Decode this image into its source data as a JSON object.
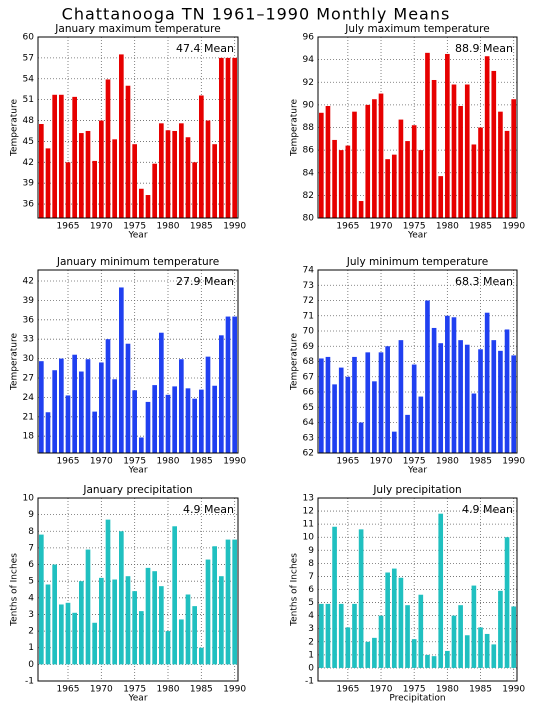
{
  "title": "Chattanooga TN  1961–1990 Monthly Means",
  "chart_data": [
    {
      "type": "bar",
      "title": "January maximum temperature",
      "annotation": "47.4 Mean",
      "xlabel": "Year",
      "ylabel": "Temperature",
      "color": "#e60000",
      "grid": true,
      "x": [
        1961,
        1962,
        1963,
        1964,
        1965,
        1966,
        1967,
        1968,
        1969,
        1970,
        1971,
        1972,
        1973,
        1974,
        1975,
        1976,
        1977,
        1978,
        1979,
        1980,
        1981,
        1982,
        1983,
        1984,
        1985,
        1986,
        1987,
        1988,
        1989,
        1990
      ],
      "values": [
        47.5,
        44,
        51.7,
        51.7,
        42,
        51.4,
        46.2,
        46.5,
        42.2,
        48,
        53.9,
        45.3,
        57.5,
        53,
        44.6,
        38.2,
        37.3,
        41.8,
        47.6,
        46.6,
        46.5,
        47.6,
        45.6,
        42,
        51.6,
        48,
        44.6,
        57,
        57,
        57
      ],
      "xlim": [
        1960.5,
        1990.5
      ],
      "xticks": [
        1965,
        1970,
        1975,
        1980,
        1985,
        1990
      ],
      "ylim": [
        34,
        60
      ],
      "yticks": [
        36,
        39,
        42,
        45,
        48,
        51,
        54,
        57,
        60
      ]
    },
    {
      "type": "bar",
      "title": "July maximum temperature",
      "annotation": "88.9 Mean",
      "xlabel": "Year",
      "ylabel": "Temperature",
      "color": "#e60000",
      "grid": true,
      "x": [
        1961,
        1962,
        1963,
        1964,
        1965,
        1966,
        1967,
        1968,
        1969,
        1970,
        1971,
        1972,
        1973,
        1974,
        1975,
        1976,
        1977,
        1978,
        1979,
        1980,
        1981,
        1982,
        1983,
        1984,
        1985,
        1986,
        1987,
        1988,
        1989,
        1990
      ],
      "values": [
        89.3,
        89.9,
        86.9,
        86,
        86.4,
        89.4,
        81.5,
        90,
        90.5,
        91,
        85.2,
        85.6,
        88.7,
        86.8,
        88.2,
        86,
        94.6,
        92.2,
        83.7,
        94.5,
        91.8,
        89.9,
        91.8,
        86.5,
        88,
        94.3,
        93,
        89.4,
        87.7,
        90.5
      ],
      "xlim": [
        1960.5,
        1990.5
      ],
      "xticks": [
        1965,
        1970,
        1975,
        1980,
        1985,
        1990
      ],
      "ylim": [
        80,
        96
      ],
      "yticks": [
        80,
        82,
        84,
        86,
        88,
        90,
        92,
        94,
        96
      ]
    },
    {
      "type": "bar",
      "title": "January minimum temperature",
      "annotation": "27.9 Mean",
      "xlabel": "Year",
      "ylabel": "Temperature",
      "color": "#2040f0",
      "grid": true,
      "x": [
        1961,
        1962,
        1963,
        1964,
        1965,
        1966,
        1967,
        1968,
        1969,
        1970,
        1971,
        1972,
        1973,
        1974,
        1975,
        1976,
        1977,
        1978,
        1979,
        1980,
        1981,
        1982,
        1983,
        1984,
        1985,
        1986,
        1987,
        1988,
        1989,
        1990
      ],
      "values": [
        29.6,
        21.7,
        28.2,
        30,
        24.3,
        30.6,
        28,
        29.9,
        21.8,
        29.4,
        33,
        26.8,
        41,
        32.3,
        25.1,
        17.8,
        23.3,
        25.9,
        34,
        24.4,
        25.7,
        29.9,
        25.4,
        23.8,
        25.2,
        30.3,
        25.8,
        33.6,
        36.5,
        36.5
      ],
      "xlim": [
        1960.5,
        1990.5
      ],
      "xticks": [
        1965,
        1970,
        1975,
        1980,
        1985,
        1990
      ],
      "ylim": [
        15.4,
        43.7
      ],
      "yticks": [
        18,
        21,
        24,
        27,
        30,
        33,
        36,
        39,
        42
      ]
    },
    {
      "type": "bar",
      "title": "July minimum temperature",
      "annotation": "68.3 Mean",
      "xlabel": "Year",
      "ylabel": "Temperature",
      "color": "#2040f0",
      "grid": true,
      "x": [
        1961,
        1962,
        1963,
        1964,
        1965,
        1966,
        1967,
        1968,
        1969,
        1970,
        1971,
        1972,
        1973,
        1974,
        1975,
        1976,
        1977,
        1978,
        1979,
        1980,
        1981,
        1982,
        1983,
        1984,
        1985,
        1986,
        1987,
        1988,
        1989,
        1990
      ],
      "values": [
        68.2,
        68.3,
        66.5,
        67.6,
        67,
        68.3,
        64,
        68.6,
        66.7,
        68.6,
        69,
        63.4,
        69.4,
        64.5,
        67.8,
        65.7,
        72,
        70.2,
        69.2,
        71,
        70.9,
        69.4,
        69.1,
        65.9,
        68.8,
        71.2,
        69.4,
        68.7,
        70.1,
        68.4
      ],
      "xlim": [
        1960.5,
        1990.5
      ],
      "xticks": [
        1965,
        1970,
        1975,
        1980,
        1985,
        1990
      ],
      "ylim": [
        62,
        74
      ],
      "yticks": [
        62,
        63,
        64,
        65,
        66,
        67,
        68,
        69,
        70,
        71,
        72,
        73,
        74
      ]
    },
    {
      "type": "bar",
      "title": "January precipitation",
      "annotation": "4.9 Mean",
      "xlabel": "Year",
      "ylabel": "Tenths of Inches",
      "color": "#20c0c0",
      "grid": true,
      "x": [
        1961,
        1962,
        1963,
        1964,
        1965,
        1966,
        1967,
        1968,
        1969,
        1970,
        1971,
        1972,
        1973,
        1974,
        1975,
        1976,
        1977,
        1978,
        1979,
        1980,
        1981,
        1982,
        1983,
        1984,
        1985,
        1986,
        1987,
        1988,
        1989,
        1990
      ],
      "values": [
        7.8,
        4.8,
        6,
        3.6,
        3.7,
        3.1,
        5,
        6.9,
        2.5,
        5.2,
        8.7,
        5.1,
        8,
        5.3,
        4.4,
        3.2,
        5.8,
        5.6,
        4.7,
        2,
        8.3,
        2.7,
        4.2,
        3.5,
        1,
        6.3,
        7.1,
        5.3,
        7.5,
        7.5
      ],
      "xlim": [
        1960.5,
        1990.5
      ],
      "xticks": [
        1965,
        1970,
        1975,
        1980,
        1985,
        1990
      ],
      "ylim": [
        -1,
        10
      ],
      "yticks": [
        -1,
        0,
        1,
        2,
        3,
        4,
        5,
        6,
        7,
        8,
        9,
        10
      ]
    },
    {
      "type": "bar",
      "title": "July precipitation",
      "annotation": "4.9 Mean",
      "xlabel": "Precipitation",
      "ylabel": "Tenths of Inches",
      "color": "#20c0c0",
      "grid": true,
      "x": [
        1961,
        1962,
        1963,
        1964,
        1965,
        1966,
        1967,
        1968,
        1969,
        1970,
        1971,
        1972,
        1973,
        1974,
        1975,
        1976,
        1977,
        1978,
        1979,
        1980,
        1981,
        1982,
        1983,
        1984,
        1985,
        1986,
        1987,
        1988,
        1989,
        1990
      ],
      "values": [
        4.9,
        4.9,
        10.8,
        4.9,
        3.1,
        4.9,
        10.6,
        2,
        2.3,
        4,
        7.3,
        7.6,
        6.9,
        4.8,
        2.2,
        5.6,
        1,
        0.9,
        11.8,
        1.3,
        4,
        4.8,
        2.5,
        6.3,
        3.1,
        2.6,
        1.8,
        5.9,
        10,
        4.7
      ],
      "xlim": [
        1960.5,
        1990.5
      ],
      "xticks": [
        1965,
        1970,
        1975,
        1980,
        1985,
        1990
      ],
      "ylim": [
        -1,
        13
      ],
      "yticks": [
        -1,
        0,
        1,
        2,
        3,
        4,
        5,
        6,
        7,
        8,
        9,
        10,
        11,
        12,
        13
      ]
    }
  ]
}
